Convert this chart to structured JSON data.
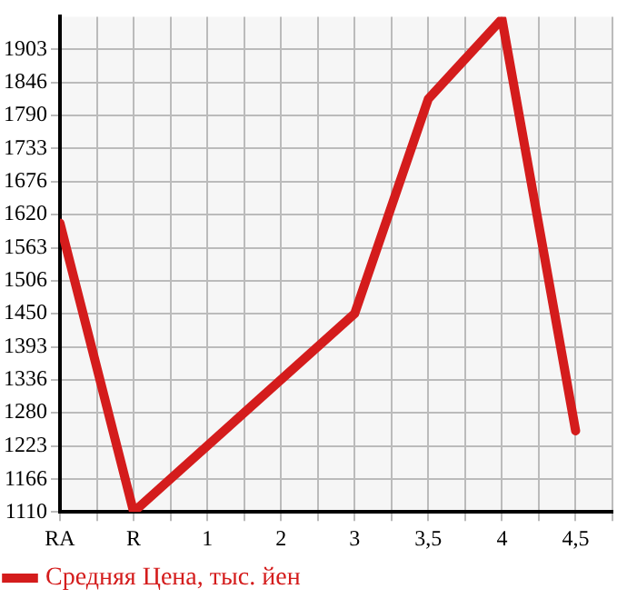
{
  "chart_data": {
    "type": "line",
    "categories": [
      "RA",
      "R",
      "1",
      "2",
      "3",
      "3,5",
      "4",
      "4,5"
    ],
    "series": [
      {
        "name": "Средняя Цена, тыс. йен",
        "color": "#d41c1c",
        "values": [
          1605,
          1110,
          null,
          null,
          1450,
          1818,
          1955,
          1249
        ]
      }
    ],
    "ylim": [
      1110,
      1959
    ],
    "yticks": [
      1110,
      1166,
      1223,
      1280,
      1336,
      1393,
      1450,
      1506,
      1563,
      1620,
      1676,
      1733,
      1790,
      1846,
      1903
    ],
    "grid": true,
    "legend": "bottom left",
    "marker": "none",
    "line_style": "solid"
  }
}
